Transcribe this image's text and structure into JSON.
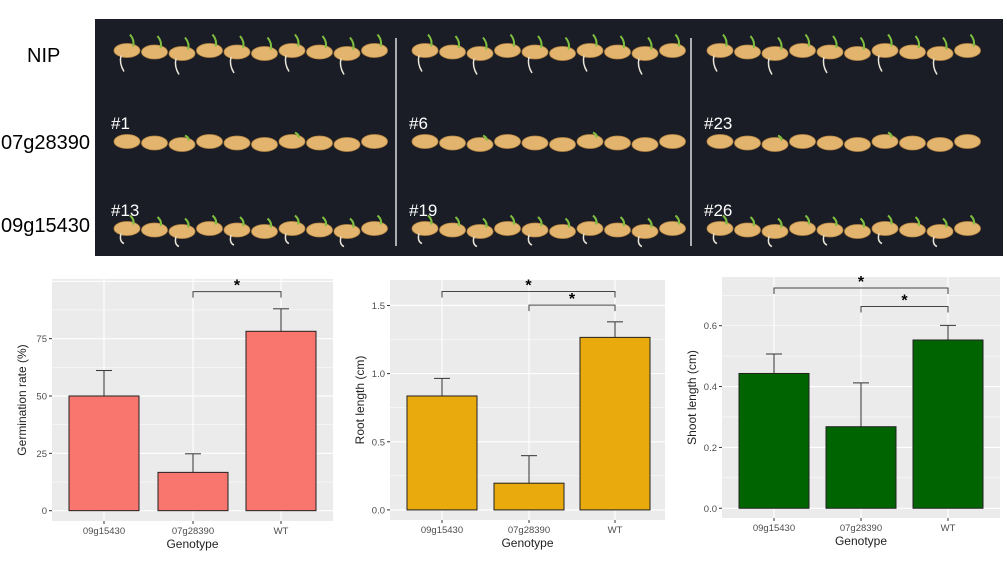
{
  "photo": {
    "row_labels": [
      "NIP",
      "07g28390",
      "09g15430"
    ],
    "line_labels": {
      "07g28390": [
        "#1",
        "#6",
        "#23"
      ],
      "09g15430": [
        "#13",
        "#19",
        "#26"
      ]
    },
    "background_color": "#1a1c26"
  },
  "chart_data": [
    {
      "type": "bar",
      "categories": [
        "09g15430",
        "07g28390",
        "WT"
      ],
      "values": [
        50,
        16.7,
        78.2
      ],
      "error_upper": [
        61.1,
        24.8,
        88
      ],
      "xlabel": "Genotype",
      "ylabel": "Germination rate (%)",
      "yticks": [
        "0",
        "25",
        "50",
        "75"
      ],
      "ylim": [
        -4.5,
        101
      ],
      "grid": true,
      "color": "#f8766d",
      "significance": [
        {
          "from": "07g28390",
          "to": "WT",
          "label": "*",
          "y": 95.5
        }
      ]
    },
    {
      "type": "bar",
      "categories": [
        "09g15430",
        "07g28390",
        "WT"
      ],
      "values": [
        0.836,
        0.196,
        1.266
      ],
      "error_upper": [
        0.965,
        0.398,
        1.38
      ],
      "xlabel": "Genotype",
      "ylabel": "Root length (cm)",
      "yticks": [
        "0.0",
        "0.5",
        "1.0",
        "1.5"
      ],
      "ylim": [
        -0.074,
        1.687
      ],
      "grid": true,
      "color": "#e9aa0e",
      "significance": [
        {
          "from": "09g15430",
          "to": "WT",
          "label": "*",
          "y": 1.603
        },
        {
          "from": "07g28390",
          "to": "WT",
          "label": "*",
          "y": 1.503
        }
      ]
    },
    {
      "type": "bar",
      "categories": [
        "09g15430",
        "07g28390",
        "WT"
      ],
      "values": [
        0.443,
        0.268,
        0.553
      ],
      "error_upper": [
        0.507,
        0.412,
        0.601
      ],
      "xlabel": "Genotype",
      "ylabel": "Shoot length (cm)",
      "yticks": [
        "0.0",
        "0.2",
        "0.4",
        "0.6"
      ],
      "ylim": [
        -0.032,
        0.76
      ],
      "grid": true,
      "color": "#006400",
      "significance": [
        {
          "from": "09g15430",
          "to": "WT",
          "label": "*",
          "y": 0.724
        },
        {
          "from": "07g28390",
          "to": "WT",
          "label": "*",
          "y": 0.663
        }
      ]
    }
  ]
}
